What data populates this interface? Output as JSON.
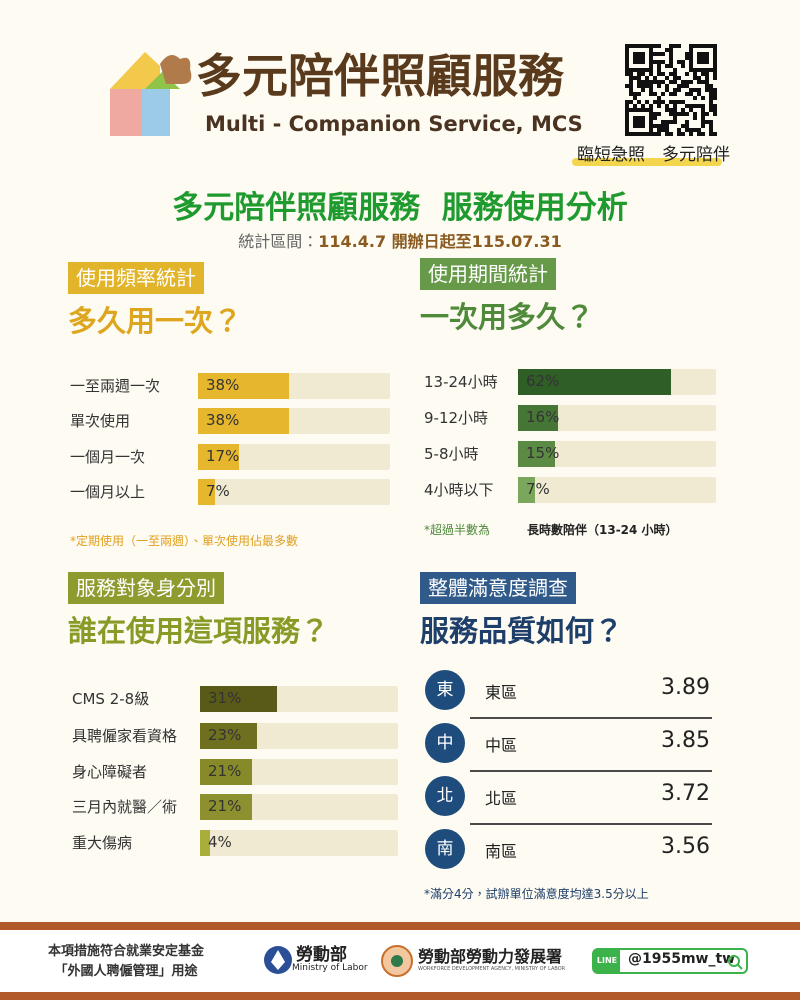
{
  "header": {
    "title": "多元陪伴照顧服務",
    "subtitle": "Multi - Companion Service, MCS",
    "qr_caption": "臨短急照　多元陪伴"
  },
  "main_title": "多元陪伴照顧服務  服務使用分析",
  "period_label": "統計區間：",
  "period": "114.4.7 開辦日起至115.07.31",
  "frequency": {
    "tag": "使用頻率統計",
    "question": "多久用一次？",
    "items": [
      {
        "label": "一至兩週一次",
        "value": 38,
        "value_label": "38%",
        "color": "#e6b62c"
      },
      {
        "label": "單次使用",
        "value": 38,
        "value_label": "38%",
        "color": "#e6b62c"
      },
      {
        "label": "一個月一次",
        "value": 17,
        "value_label": "17%",
        "color": "#e6b62c"
      },
      {
        "label": "一個月以上",
        "value": 7,
        "value_label": "7%",
        "color": "#e6b62c"
      }
    ],
    "note": "*定期使用（一至兩週）、單次使用佔最多數"
  },
  "duration": {
    "tag": "使用期間統計",
    "question": "一次用多久？",
    "items": [
      {
        "label": "13-24小時",
        "value": 62,
        "value_label": "62%",
        "color": "#2f5e26"
      },
      {
        "label": "9-12小時",
        "value": 16,
        "value_label": "16%",
        "color": "#467636"
      },
      {
        "label": "5-8小時",
        "value": 15,
        "value_label": "15%",
        "color": "#5a8a44"
      },
      {
        "label": "4小時以下",
        "value": 7,
        "value_label": "7%",
        "color": "#7aa75c"
      }
    ],
    "note": "*超過半數為",
    "note_strong": "長時數陪伴（13-24 小時）"
  },
  "target": {
    "tag": "服務對象身分別",
    "question": "誰在使用這項服務？",
    "items": [
      {
        "label": "CMS 2-8級",
        "value": 31,
        "value_label": "31%",
        "color": "#5a5a18"
      },
      {
        "label": "具聘僱家看資格",
        "value": 23,
        "value_label": "23%",
        "color": "#6e7020"
      },
      {
        "label": "身心障礙者",
        "value": 21,
        "value_label": "21%",
        "color": "#868a28"
      },
      {
        "label": "三月內就醫／術",
        "value": 21,
        "value_label": "21%",
        "color": "#8c902e"
      },
      {
        "label": "重大傷病",
        "value": 4,
        "value_label": "4%",
        "color": "#a9ad3c"
      }
    ]
  },
  "satisfaction": {
    "tag": "整體滿意度調查",
    "question": "服務品質如何？",
    "items": [
      {
        "icon": "東",
        "region": "東區",
        "score": 3.89
      },
      {
        "icon": "中",
        "region": "中區",
        "score": 3.85
      },
      {
        "icon": "北",
        "region": "北區",
        "score": 3.72
      },
      {
        "icon": "南",
        "region": "南區",
        "score": 3.56
      }
    ],
    "note": "*滿分4分，試辦單位滿意度均達3.5分以上"
  },
  "footer": {
    "fund_line1": "本項措施符合就業安定基金",
    "fund_line2": "「外國人聘僱管理」用途",
    "ministry": "勞動部",
    "ministry_en": "Ministry of Labor",
    "agency": "勞動部勞動力發展署",
    "agency_en": "WORKFORCE DEVELOPMENT AGENCY, MINISTRY OF LABOR",
    "line": "LINE",
    "line_id": "@1955mw_tw"
  }
}
